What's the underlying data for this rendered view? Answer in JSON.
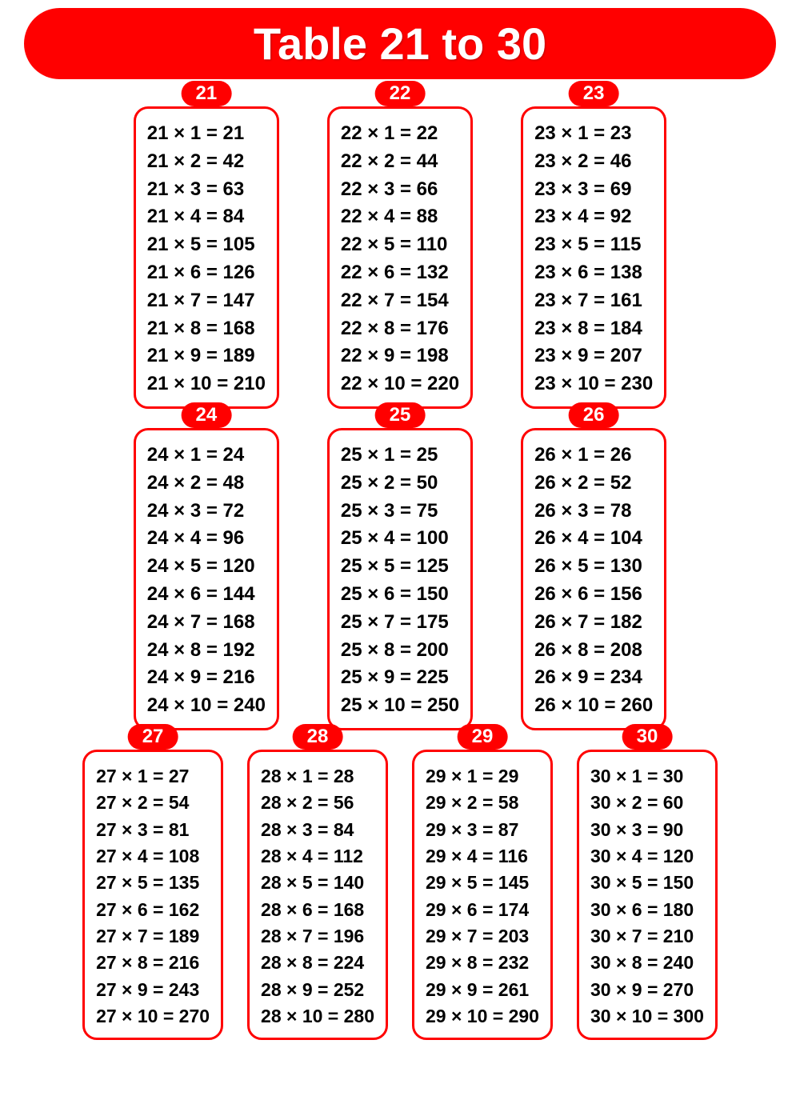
{
  "title": "Table 21 to 30",
  "style": {
    "accent_color": "#ff0000",
    "text_color": "#000000",
    "title_text_color": "#ffffff",
    "background_color": "#ffffff",
    "title_fontsize": 56,
    "badge_fontsize": 24,
    "line_fontsize": 24,
    "border_width": 3,
    "border_radius": 18,
    "badge_radius": 16,
    "font_weight": "bold",
    "font_family": "Arial"
  },
  "layout": {
    "rows": [
      3,
      3,
      4
    ]
  },
  "tables": [
    {
      "n": "21",
      "lines": [
        "21 × 1 = 21",
        "21 × 2 = 42",
        "21 × 3 = 63",
        "21 × 4 = 84",
        "21 × 5 = 105",
        "21 × 6 = 126",
        "21 × 7 = 147",
        "21 × 8 = 168",
        "21 × 9 = 189",
        "21 × 10 = 210"
      ]
    },
    {
      "n": "22",
      "lines": [
        "22 × 1 = 22",
        "22 × 2 = 44",
        "22 × 3 = 66",
        "22 × 4 = 88",
        "22 × 5 = 110",
        "22 × 6 = 132",
        "22 × 7 = 154",
        "22 × 8 = 176",
        "22 × 9 = 198",
        "22 × 10 = 220"
      ]
    },
    {
      "n": "23",
      "lines": [
        "23 × 1 = 23",
        "23 × 2 = 46",
        "23 × 3 = 69",
        "23 × 4 = 92",
        "23 × 5 = 115",
        "23 × 6 = 138",
        "23 × 7 = 161",
        "23 × 8 = 184",
        "23 × 9 = 207",
        "23 × 10 = 230"
      ]
    },
    {
      "n": "24",
      "lines": [
        "24 × 1 = 24",
        "24 × 2 = 48",
        "24 × 3 = 72",
        "24 × 4 = 96",
        "24 × 5 = 120",
        "24 × 6 = 144",
        "24 × 7 = 168",
        "24 × 8 = 192",
        "24 × 9 = 216",
        "24 × 10 = 240"
      ]
    },
    {
      "n": "25",
      "lines": [
        "25 × 1 = 25",
        "25 × 2 = 50",
        "25 × 3 = 75",
        "25 × 4 = 100",
        "25 × 5 = 125",
        "25 × 6 = 150",
        "25 × 7 = 175",
        "25 × 8 = 200",
        "25 × 9 = 225",
        "25 × 10 = 250"
      ]
    },
    {
      "n": "26",
      "lines": [
        "26 × 1 = 26",
        "26 × 2 = 52",
        "26 × 3 = 78",
        "26 × 4 = 104",
        "26 × 5 = 130",
        "26 × 6 = 156",
        "26 × 7 = 182",
        "26 × 8 = 208",
        "26 × 9 = 234",
        "26 × 10 = 260"
      ]
    },
    {
      "n": "27",
      "lines": [
        "27 × 1 = 27",
        "27 × 2 = 54",
        "27 × 3 = 81",
        "27 × 4 = 108",
        "27 × 5 = 135",
        "27 × 6 = 162",
        "27 × 7 = 189",
        "27 × 8 = 216",
        "27 × 9 = 243",
        "27 × 10 = 270"
      ]
    },
    {
      "n": "28",
      "lines": [
        "28 × 1 = 28",
        "28 × 2 = 56",
        "28 × 3 = 84",
        "28 × 4 = 112",
        "28 × 5 = 140",
        "28 × 6 = 168",
        "28 × 7 = 196",
        "28 × 8 = 224",
        "28 × 9 = 252",
        "28 × 10 = 280"
      ]
    },
    {
      "n": "29",
      "lines": [
        "29 × 1 = 29",
        "29 × 2 = 58",
        "29 × 3 = 87",
        "29 × 4 = 116",
        "29 × 5 = 145",
        "29 × 6 = 174",
        "29 × 7 = 203",
        "29 × 8 = 232",
        "29 × 9 = 261",
        "29 × 10 = 290"
      ]
    },
    {
      "n": "30",
      "lines": [
        "30 × 1 = 30",
        "30 × 2 = 60",
        "30 × 3 = 90",
        "30 × 4 = 120",
        "30 × 5 = 150",
        "30 × 6 = 180",
        "30 × 7 = 210",
        "30 × 8 = 240",
        "30 × 9 = 270",
        "30 × 10 = 300"
      ]
    }
  ]
}
